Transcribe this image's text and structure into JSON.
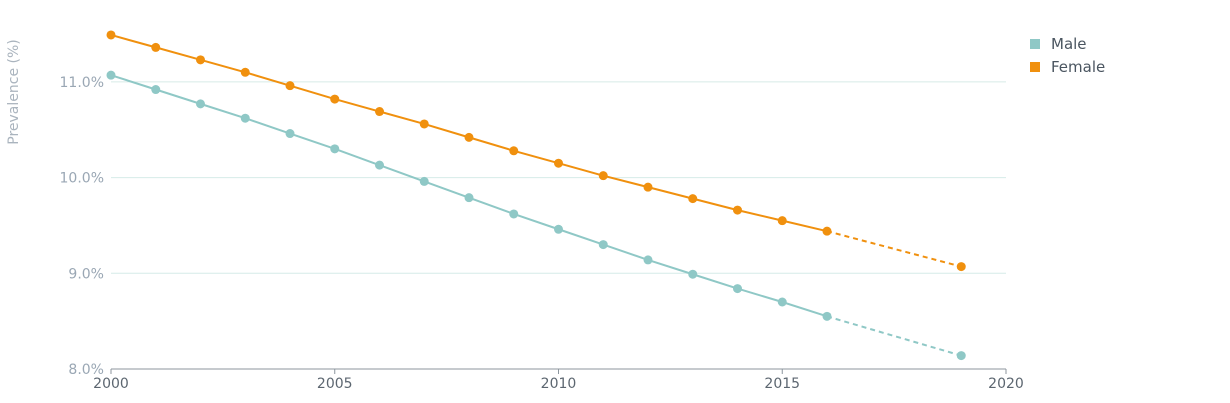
{
  "chart_data": {
    "type": "line",
    "title": "",
    "xlabel": "",
    "ylabel": "Prevalence (%)",
    "xlim": [
      2000,
      2020
    ],
    "ylim": [
      8.0,
      11.5
    ],
    "x_ticks": [
      2000,
      2005,
      2010,
      2015,
      2020
    ],
    "x_tick_labels": [
      "2000",
      "2005",
      "2010",
      "2015",
      "2020"
    ],
    "y_ticks": [
      8.0,
      9.0,
      10.0,
      11.0
    ],
    "y_tick_labels": [
      "8.0%",
      "9.0%",
      "10.0%",
      "11.0%"
    ],
    "grid": "horizontal",
    "legend_position": "top-right",
    "series": [
      {
        "name": "Male",
        "color": "#8fc8c6",
        "x": [
          2000,
          2001,
          2002,
          2003,
          2004,
          2005,
          2006,
          2007,
          2008,
          2009,
          2010,
          2011,
          2012,
          2013,
          2014,
          2015,
          2016
        ],
        "values": [
          11.07,
          10.92,
          10.77,
          10.62,
          10.46,
          10.3,
          10.13,
          9.96,
          9.79,
          9.62,
          9.46,
          9.3,
          9.14,
          8.99,
          8.84,
          8.7,
          8.55
        ],
        "projection": {
          "x": [
            2016,
            2019
          ],
          "values": [
            8.55,
            8.14
          ]
        }
      },
      {
        "name": "Female",
        "color": "#f0900e",
        "x": [
          2000,
          2001,
          2002,
          2003,
          2004,
          2005,
          2006,
          2007,
          2008,
          2009,
          2010,
          2011,
          2012,
          2013,
          2014,
          2015,
          2016
        ],
        "values": [
          11.49,
          11.36,
          11.23,
          11.1,
          10.96,
          10.82,
          10.69,
          10.56,
          10.42,
          10.28,
          10.15,
          10.02,
          9.9,
          9.78,
          9.66,
          9.55,
          9.44
        ],
        "projection": {
          "x": [
            2016,
            2019
          ],
          "values": [
            9.44,
            9.07
          ]
        }
      }
    ]
  }
}
